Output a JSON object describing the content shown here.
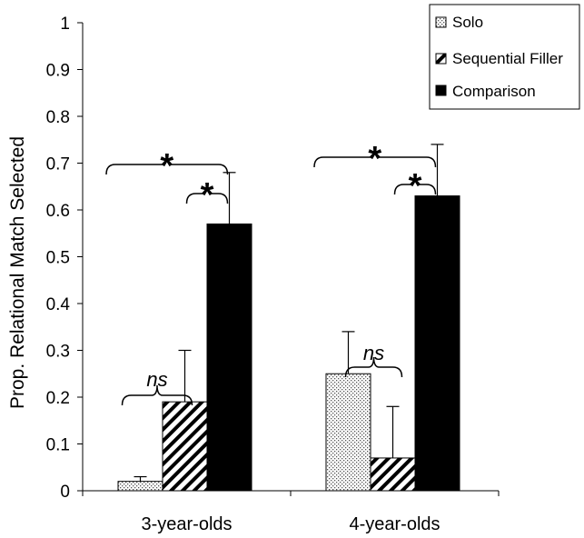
{
  "chart_data": {
    "type": "bar",
    "categories": [
      "3-year-olds",
      "4-year-olds"
    ],
    "series": [
      {
        "name": "Solo",
        "values": [
          0.02,
          0.25
        ],
        "error": [
          0.01,
          0.09
        ],
        "color": "#e8e8e8",
        "pattern": "dots"
      },
      {
        "name": "Sequential Filler",
        "values": [
          0.19,
          0.07
        ],
        "error": [
          0.11,
          0.11
        ],
        "color": "#ffffff",
        "pattern": "diagonal"
      },
      {
        "name": "Comparison",
        "values": [
          0.57,
          0.63
        ],
        "error": [
          0.11,
          0.11
        ],
        "color": "#000000",
        "pattern": "solid"
      }
    ],
    "ylabel": "Prop. Relational Match Selected",
    "xlabel": "",
    "ylim": [
      0,
      1
    ],
    "yticks": [
      "0",
      "0.1",
      "0.2",
      "0.3",
      "0.4",
      "0.5",
      "0.6",
      "0.7",
      "0.8",
      "0.9",
      "1"
    ],
    "legend_position": "top-right",
    "annotations": [
      {
        "group": 0,
        "type": "ns",
        "text": "ns",
        "from": 0,
        "to": 1
      },
      {
        "group": 0,
        "type": "sig",
        "text": "*",
        "from": 1,
        "to": 2
      },
      {
        "group": 0,
        "type": "sig",
        "text": "*",
        "from": 0,
        "to": 2
      },
      {
        "group": 1,
        "type": "ns",
        "text": "ns",
        "from": 0,
        "to": 1
      },
      {
        "group": 1,
        "type": "sig",
        "text": "*",
        "from": 1,
        "to": 2
      },
      {
        "group": 1,
        "type": "sig",
        "text": "*",
        "from": 0,
        "to": 2
      }
    ]
  }
}
